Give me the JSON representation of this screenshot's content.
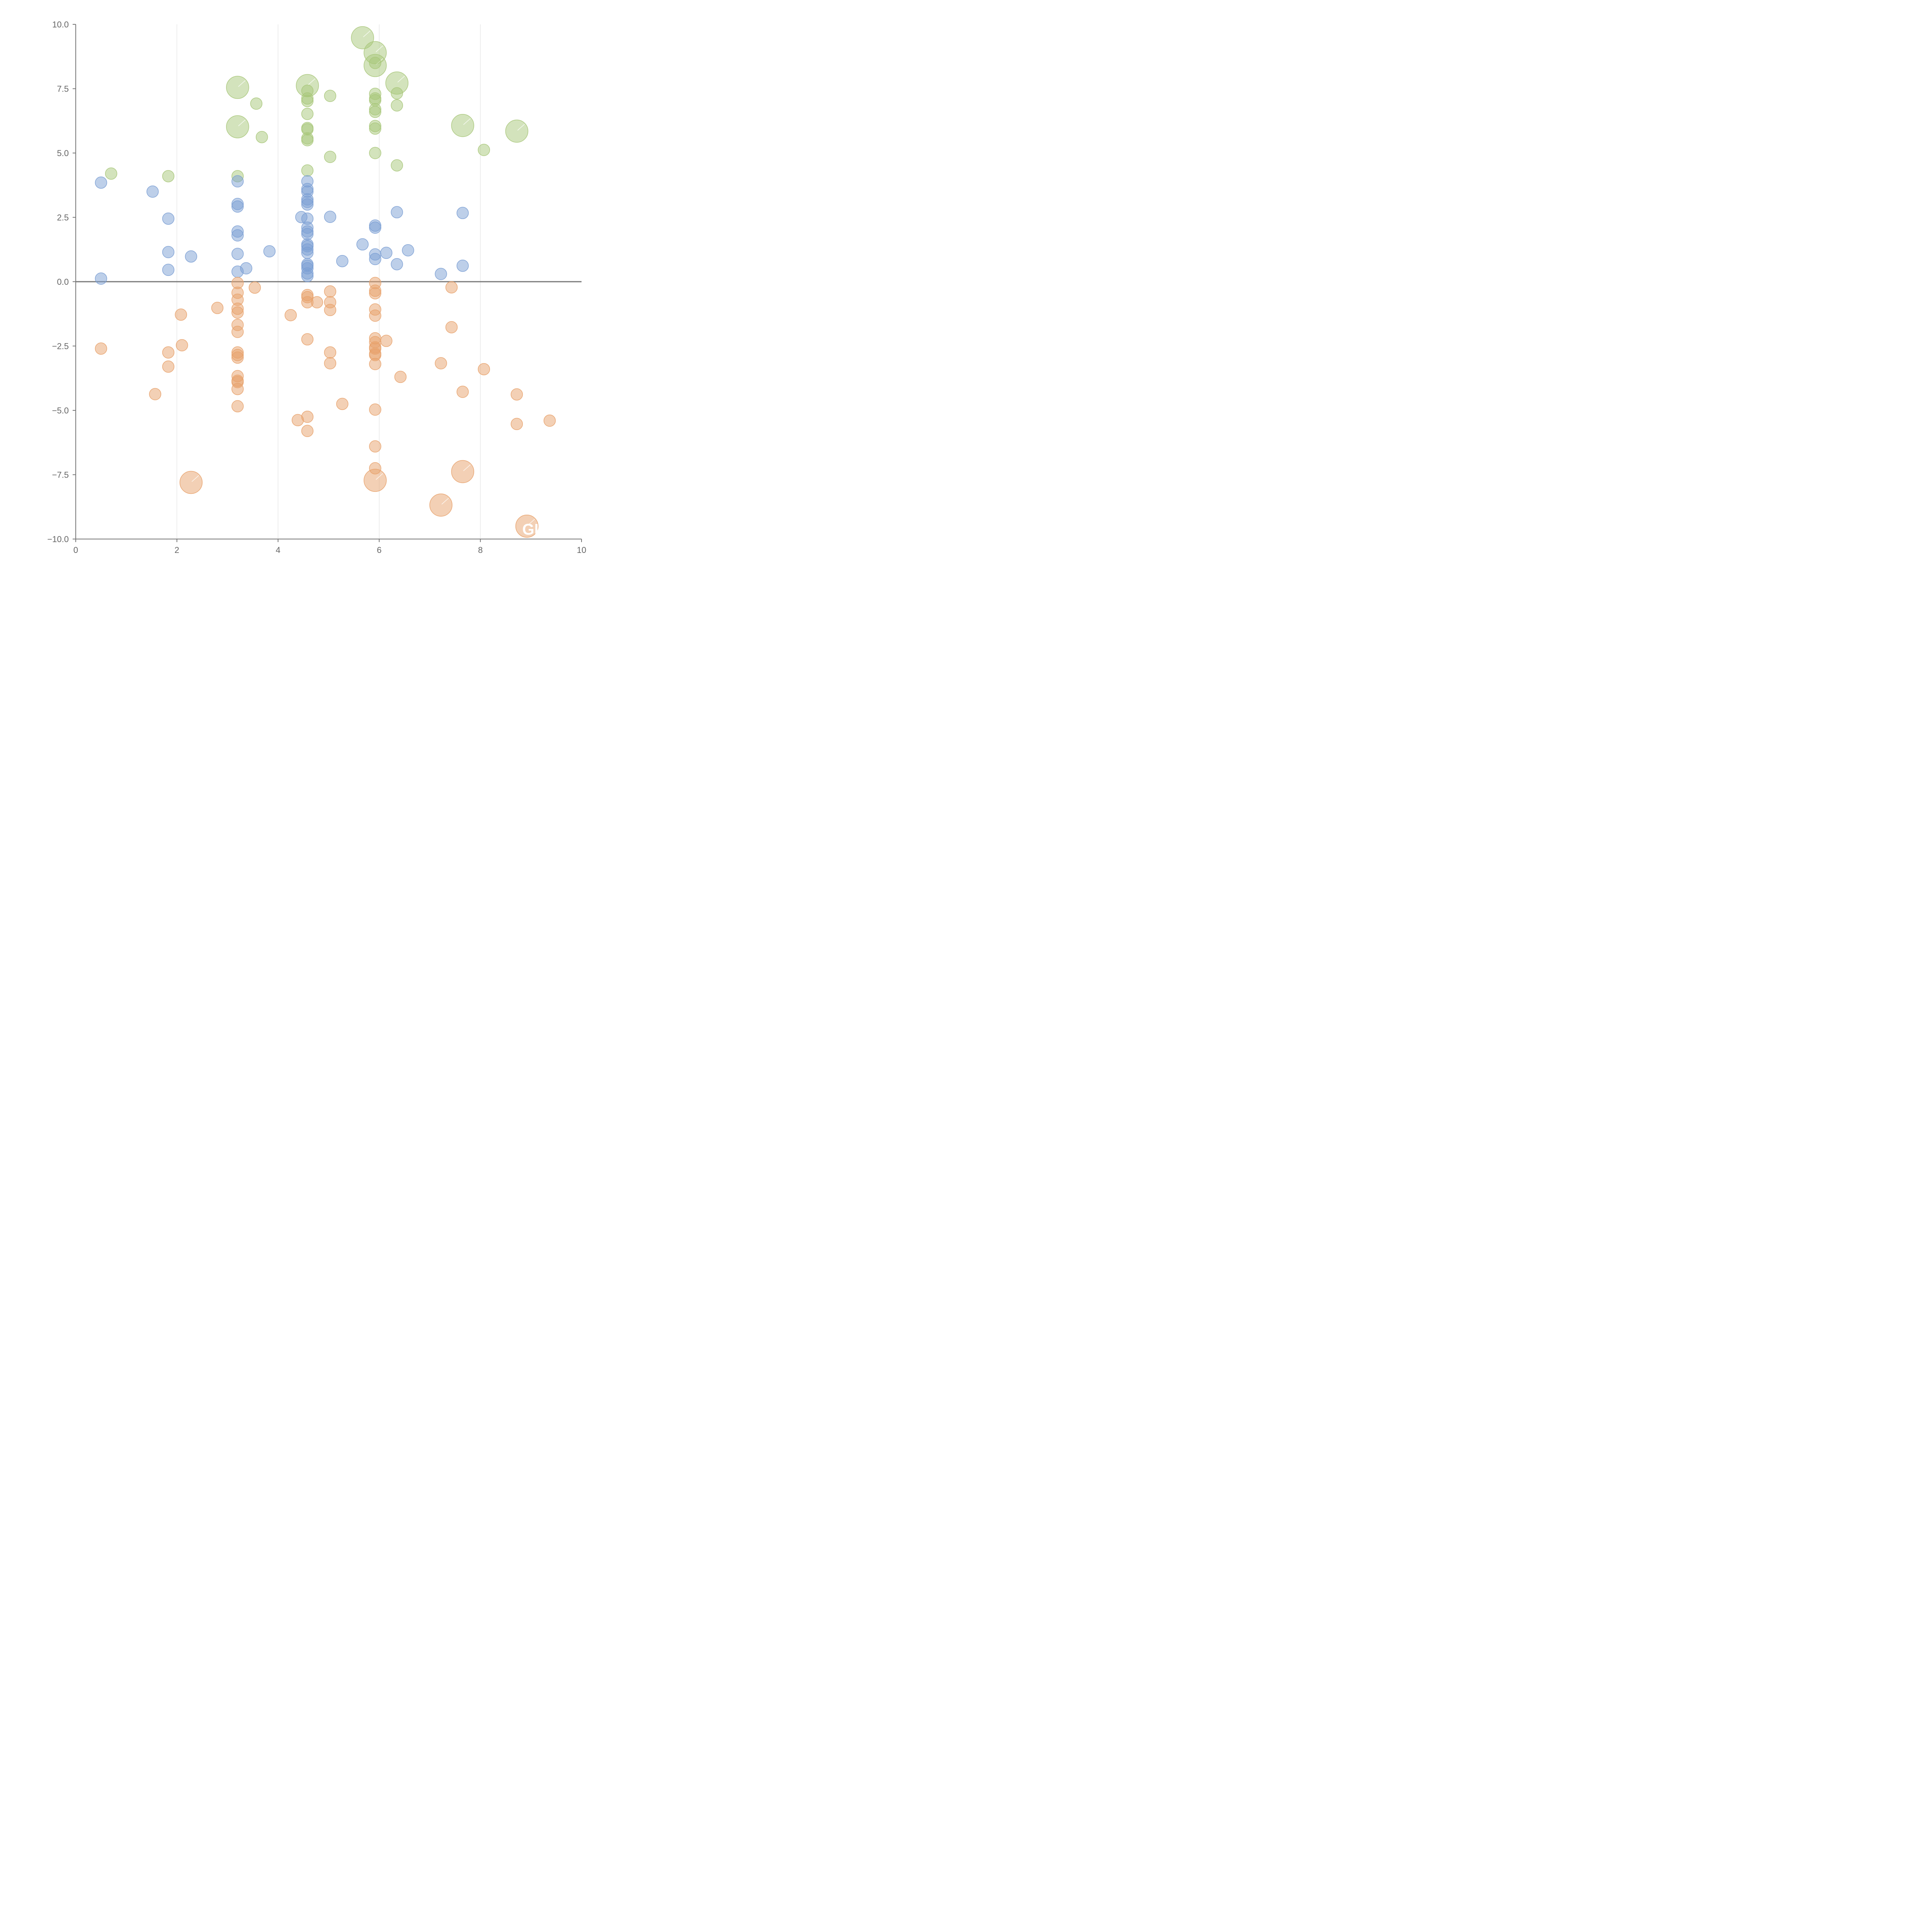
{
  "chart_data": {
    "type": "scatter",
    "xlim": [
      0,
      10
    ],
    "ylim": [
      -10,
      10
    ],
    "xticks": [
      "0",
      "2",
      "4",
      "6",
      "8",
      "10"
    ],
    "yticks": [
      "10.0",
      "7.5",
      "5.0",
      "2.5",
      "0.0",
      "−2.5",
      "−5.0",
      "−7.5",
      "−10.0"
    ],
    "grid": "vertical",
    "zero_line": true,
    "series": [
      {
        "color": "#a8c77a",
        "points": [
          {
            "x": 0.7,
            "y": 4.2,
            "r": 15
          },
          {
            "x": 1.83,
            "y": 4.1,
            "r": 15
          },
          {
            "x": 3.2,
            "y": 4.1,
            "r": 15
          },
          {
            "x": 3.2,
            "y": 7.55,
            "r": 29
          },
          {
            "x": 3.2,
            "y": 6.02,
            "r": 29
          },
          {
            "x": 3.57,
            "y": 6.92,
            "r": 15
          },
          {
            "x": 3.68,
            "y": 5.62,
            "r": 15
          },
          {
            "x": 4.58,
            "y": 7.62,
            "r": 29
          },
          {
            "x": 4.58,
            "y": 7.42,
            "r": 15
          },
          {
            "x": 4.58,
            "y": 7.12,
            "r": 15
          },
          {
            "x": 4.58,
            "y": 7.02,
            "r": 15
          },
          {
            "x": 4.58,
            "y": 6.52,
            "r": 15
          },
          {
            "x": 4.58,
            "y": 5.97,
            "r": 15
          },
          {
            "x": 4.58,
            "y": 5.92,
            "r": 15
          },
          {
            "x": 4.58,
            "y": 5.57,
            "r": 15
          },
          {
            "x": 4.58,
            "y": 5.5,
            "r": 15
          },
          {
            "x": 4.58,
            "y": 4.32,
            "r": 15
          },
          {
            "x": 5.03,
            "y": 7.22,
            "r": 15
          },
          {
            "x": 5.03,
            "y": 4.85,
            "r": 15
          },
          {
            "x": 5.67,
            "y": 9.48,
            "r": 29
          },
          {
            "x": 5.92,
            "y": 8.9,
            "r": 29
          },
          {
            "x": 5.92,
            "y": 8.4,
            "r": 29
          },
          {
            "x": 5.92,
            "y": 8.5,
            "r": 15
          },
          {
            "x": 5.92,
            "y": 7.3,
            "r": 15
          },
          {
            "x": 5.92,
            "y": 7.12,
            "r": 15
          },
          {
            "x": 5.92,
            "y": 7.05,
            "r": 15
          },
          {
            "x": 5.92,
            "y": 6.7,
            "r": 15
          },
          {
            "x": 5.92,
            "y": 6.6,
            "r": 15
          },
          {
            "x": 5.92,
            "y": 6.05,
            "r": 15
          },
          {
            "x": 5.92,
            "y": 5.95,
            "r": 15
          },
          {
            "x": 5.92,
            "y": 5.0,
            "r": 15
          },
          {
            "x": 6.35,
            "y": 7.72,
            "r": 29
          },
          {
            "x": 6.35,
            "y": 7.32,
            "r": 15
          },
          {
            "x": 6.35,
            "y": 6.85,
            "r": 15
          },
          {
            "x": 6.35,
            "y": 4.52,
            "r": 15
          },
          {
            "x": 7.65,
            "y": 6.07,
            "r": 29
          },
          {
            "x": 8.07,
            "y": 5.12,
            "r": 15
          },
          {
            "x": 8.72,
            "y": 5.85,
            "r": 29
          }
        ]
      },
      {
        "color": "#7b9fd4",
        "points": [
          {
            "x": 0.5,
            "y": 3.85,
            "r": 15
          },
          {
            "x": 0.5,
            "y": 0.12,
            "r": 15
          },
          {
            "x": 1.52,
            "y": 3.5,
            "r": 15
          },
          {
            "x": 1.83,
            "y": 2.45,
            "r": 15
          },
          {
            "x": 1.83,
            "y": 1.15,
            "r": 15
          },
          {
            "x": 1.83,
            "y": 0.46,
            "r": 15
          },
          {
            "x": 2.28,
            "y": 0.98,
            "r": 15
          },
          {
            "x": 3.2,
            "y": 3.9,
            "r": 15
          },
          {
            "x": 3.2,
            "y": 3.02,
            "r": 15
          },
          {
            "x": 3.2,
            "y": 2.92,
            "r": 15
          },
          {
            "x": 3.2,
            "y": 1.95,
            "r": 15
          },
          {
            "x": 3.2,
            "y": 1.8,
            "r": 15
          },
          {
            "x": 3.2,
            "y": 1.08,
            "r": 15
          },
          {
            "x": 3.2,
            "y": 0.39,
            "r": 15
          },
          {
            "x": 3.37,
            "y": 0.52,
            "r": 15
          },
          {
            "x": 3.83,
            "y": 1.18,
            "r": 15
          },
          {
            "x": 4.46,
            "y": 2.51,
            "r": 15
          },
          {
            "x": 4.58,
            "y": 3.9,
            "r": 15
          },
          {
            "x": 4.58,
            "y": 3.6,
            "r": 15
          },
          {
            "x": 4.58,
            "y": 3.5,
            "r": 15
          },
          {
            "x": 4.58,
            "y": 3.2,
            "r": 15
          },
          {
            "x": 4.58,
            "y": 3.1,
            "r": 15
          },
          {
            "x": 4.58,
            "y": 3.0,
            "r": 15
          },
          {
            "x": 4.58,
            "y": 2.45,
            "r": 15
          },
          {
            "x": 4.58,
            "y": 2.1,
            "r": 15
          },
          {
            "x": 4.58,
            "y": 1.95,
            "r": 15
          },
          {
            "x": 4.58,
            "y": 1.85,
            "r": 15
          },
          {
            "x": 4.58,
            "y": 1.45,
            "r": 15
          },
          {
            "x": 4.58,
            "y": 1.38,
            "r": 15
          },
          {
            "x": 4.58,
            "y": 1.25,
            "r": 15
          },
          {
            "x": 4.58,
            "y": 1.12,
            "r": 15
          },
          {
            "x": 4.58,
            "y": 0.68,
            "r": 15
          },
          {
            "x": 4.58,
            "y": 0.62,
            "r": 15
          },
          {
            "x": 4.58,
            "y": 0.52,
            "r": 15
          },
          {
            "x": 4.58,
            "y": 0.32,
            "r": 15
          },
          {
            "x": 4.58,
            "y": 0.22,
            "r": 15
          },
          {
            "x": 5.03,
            "y": 2.52,
            "r": 15
          },
          {
            "x": 5.27,
            "y": 0.8,
            "r": 15
          },
          {
            "x": 5.67,
            "y": 1.45,
            "r": 15
          },
          {
            "x": 5.92,
            "y": 2.18,
            "r": 15
          },
          {
            "x": 5.92,
            "y": 2.1,
            "r": 15
          },
          {
            "x": 5.92,
            "y": 1.06,
            "r": 15
          },
          {
            "x": 5.92,
            "y": 0.88,
            "r": 15
          },
          {
            "x": 6.14,
            "y": 1.12,
            "r": 15
          },
          {
            "x": 6.35,
            "y": 2.7,
            "r": 15
          },
          {
            "x": 6.35,
            "y": 0.68,
            "r": 15
          },
          {
            "x": 6.57,
            "y": 1.22,
            "r": 15
          },
          {
            "x": 7.22,
            "y": 0.3,
            "r": 15
          },
          {
            "x": 7.65,
            "y": 2.67,
            "r": 15
          },
          {
            "x": 7.65,
            "y": 0.62,
            "r": 15
          }
        ]
      },
      {
        "color": "#e8a26c",
        "points": [
          {
            "x": 0.5,
            "y": -2.6,
            "r": 15
          },
          {
            "x": 1.57,
            "y": -4.37,
            "r": 15
          },
          {
            "x": 1.83,
            "y": -2.75,
            "r": 15
          },
          {
            "x": 1.83,
            "y": -3.3,
            "r": 15
          },
          {
            "x": 2.08,
            "y": -1.28,
            "r": 15
          },
          {
            "x": 2.1,
            "y": -2.47,
            "r": 15
          },
          {
            "x": 2.28,
            "y": -7.8,
            "r": 29
          },
          {
            "x": 2.8,
            "y": -1.02,
            "r": 15
          },
          {
            "x": 3.2,
            "y": -0.05,
            "r": 15
          },
          {
            "x": 3.2,
            "y": -0.43,
            "r": 15
          },
          {
            "x": 3.2,
            "y": -0.7,
            "r": 15
          },
          {
            "x": 3.2,
            "y": -1.05,
            "r": 15
          },
          {
            "x": 3.2,
            "y": -1.2,
            "r": 15
          },
          {
            "x": 3.2,
            "y": -1.68,
            "r": 15
          },
          {
            "x": 3.2,
            "y": -1.95,
            "r": 15
          },
          {
            "x": 3.2,
            "y": -2.75,
            "r": 15
          },
          {
            "x": 3.2,
            "y": -2.85,
            "r": 15
          },
          {
            "x": 3.2,
            "y": -2.95,
            "r": 15
          },
          {
            "x": 3.2,
            "y": -3.67,
            "r": 15
          },
          {
            "x": 3.2,
            "y": -3.85,
            "r": 15
          },
          {
            "x": 3.2,
            "y": -3.9,
            "r": 15
          },
          {
            "x": 3.2,
            "y": -4.17,
            "r": 15
          },
          {
            "x": 3.2,
            "y": -4.84,
            "r": 15
          },
          {
            "x": 3.54,
            "y": -0.23,
            "r": 15
          },
          {
            "x": 4.25,
            "y": -1.3,
            "r": 15
          },
          {
            "x": 4.39,
            "y": -5.38,
            "r": 15
          },
          {
            "x": 4.58,
            "y": -0.52,
            "r": 15
          },
          {
            "x": 4.58,
            "y": -0.6,
            "r": 15
          },
          {
            "x": 4.58,
            "y": -0.8,
            "r": 15
          },
          {
            "x": 4.58,
            "y": -2.24,
            "r": 15
          },
          {
            "x": 4.58,
            "y": -5.25,
            "r": 15
          },
          {
            "x": 4.58,
            "y": -5.8,
            "r": 15
          },
          {
            "x": 4.77,
            "y": -0.8,
            "r": 15
          },
          {
            "x": 5.03,
            "y": -0.38,
            "r": 15
          },
          {
            "x": 5.03,
            "y": -0.8,
            "r": 15
          },
          {
            "x": 5.03,
            "y": -1.1,
            "r": 15
          },
          {
            "x": 5.03,
            "y": -2.75,
            "r": 15
          },
          {
            "x": 5.03,
            "y": -3.17,
            "r": 15
          },
          {
            "x": 5.27,
            "y": -4.75,
            "r": 15
          },
          {
            "x": 5.92,
            "y": -0.05,
            "r": 15
          },
          {
            "x": 5.92,
            "y": -0.35,
            "r": 15
          },
          {
            "x": 5.92,
            "y": -0.45,
            "r": 15
          },
          {
            "x": 5.92,
            "y": -1.08,
            "r": 15
          },
          {
            "x": 5.92,
            "y": -1.32,
            "r": 15
          },
          {
            "x": 5.92,
            "y": -2.2,
            "r": 15
          },
          {
            "x": 5.92,
            "y": -2.35,
            "r": 15
          },
          {
            "x": 5.92,
            "y": -2.55,
            "r": 15
          },
          {
            "x": 5.92,
            "y": -2.6,
            "r": 15
          },
          {
            "x": 5.92,
            "y": -2.8,
            "r": 15
          },
          {
            "x": 5.92,
            "y": -2.85,
            "r": 15
          },
          {
            "x": 5.92,
            "y": -3.2,
            "r": 15
          },
          {
            "x": 5.92,
            "y": -4.97,
            "r": 15
          },
          {
            "x": 5.92,
            "y": -6.4,
            "r": 15
          },
          {
            "x": 5.92,
            "y": -7.25,
            "r": 15
          },
          {
            "x": 5.92,
            "y": -7.72,
            "r": 29
          },
          {
            "x": 6.14,
            "y": -2.3,
            "r": 15
          },
          {
            "x": 6.42,
            "y": -3.7,
            "r": 15
          },
          {
            "x": 7.22,
            "y": -3.17,
            "r": 15
          },
          {
            "x": 7.22,
            "y": -8.68,
            "r": 29
          },
          {
            "x": 7.43,
            "y": -0.22,
            "r": 15
          },
          {
            "x": 7.43,
            "y": -1.77,
            "r": 15
          },
          {
            "x": 7.65,
            "y": -4.28,
            "r": 15
          },
          {
            "x": 7.65,
            "y": -7.38,
            "r": 29
          },
          {
            "x": 8.07,
            "y": -3.4,
            "r": 15
          },
          {
            "x": 8.72,
            "y": -4.38,
            "r": 15
          },
          {
            "x": 8.72,
            "y": -5.53,
            "r": 15
          },
          {
            "x": 8.92,
            "y": -9.5,
            "r": 29
          },
          {
            "x": 9.37,
            "y": -5.4,
            "r": 15
          }
        ]
      }
    ],
    "annotations": [
      {
        "text": "GI",
        "x": 8.92,
        "y": -9.5
      }
    ]
  }
}
